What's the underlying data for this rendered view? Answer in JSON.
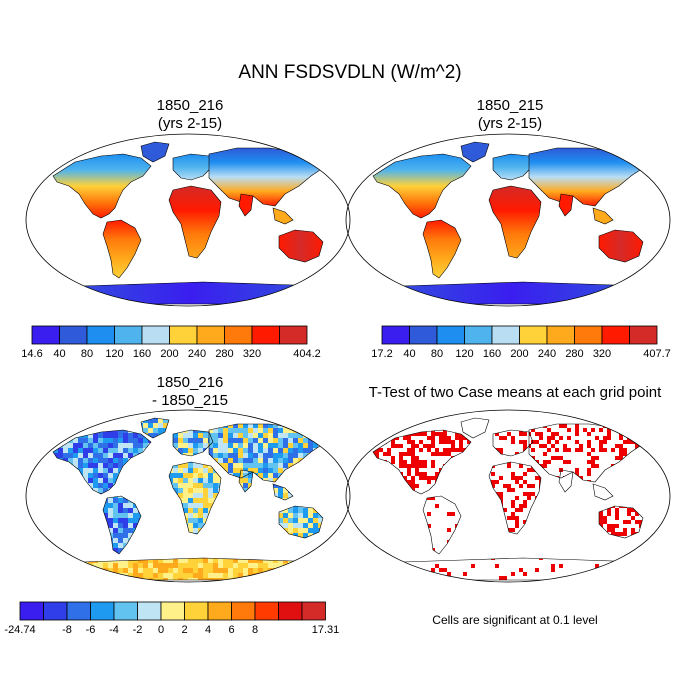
{
  "title": "ANN FSDSVDLN (W/m^2)",
  "panels": [
    {
      "title_line1": "1850_216",
      "title_line2": "(yrs 2-15)",
      "colorbar": {
        "colors": [
          "#3a1ef0",
          "#2f5ad9",
          "#1e8ff0",
          "#4fb4ee",
          "#b9def4",
          "#ffd23a",
          "#ffa91c",
          "#ff7a0a",
          "#ff1a00",
          "#d42a28"
        ],
        "labels": [
          "14.6",
          "40",
          "80",
          "120",
          "160",
          "200",
          "240",
          "280",
          "320",
          "404.2"
        ]
      }
    },
    {
      "title_line1": "1850_215",
      "title_line2": "(yrs 2-15)",
      "colorbar": {
        "colors": [
          "#3a1ef0",
          "#2f5ad9",
          "#1e8ff0",
          "#4fb4ee",
          "#b9def4",
          "#ffd23a",
          "#ffa91c",
          "#ff7a0a",
          "#ff1a00",
          "#d42a28"
        ],
        "labels": [
          "17.2",
          "40",
          "80",
          "120",
          "160",
          "200",
          "240",
          "280",
          "320",
          "407.7"
        ]
      }
    },
    {
      "title_line1": "1850_216",
      "title_line2": "- 1850_215",
      "colorbar": {
        "colors": [
          "#3a1ef0",
          "#2f3ee8",
          "#2f6fe8",
          "#1e9af0",
          "#62c2f0",
          "#bfe4f4",
          "#fff18a",
          "#ffd23a",
          "#ffa91c",
          "#ff7a0a",
          "#ff3b00",
          "#e01010",
          "#d42a28"
        ],
        "labels": [
          "-24.74",
          "",
          "-8",
          "-6",
          "-4",
          "-2",
          "0",
          "2",
          "4",
          "6",
          "8",
          "",
          "17.31"
        ]
      }
    },
    {
      "title_line1": "T-Test of two Case means at each grid point",
      "significance_color": "#ee0000",
      "note": "Cells are significant at 0.1 level"
    }
  ]
}
